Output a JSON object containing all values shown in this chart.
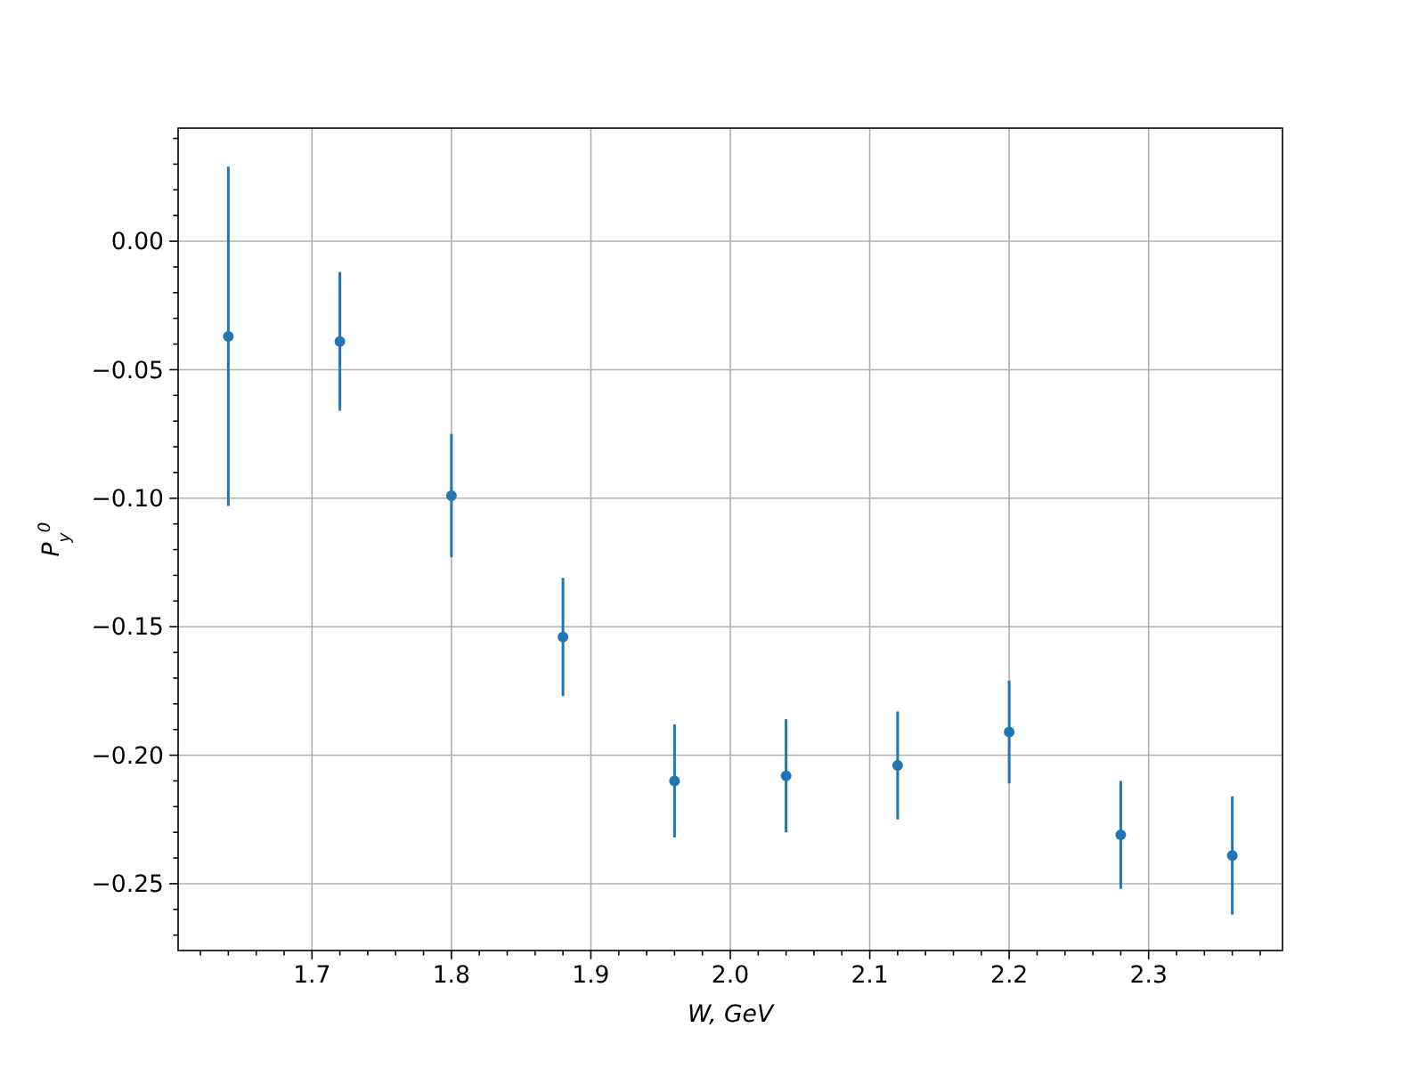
{
  "chart_data": {
    "type": "scatter",
    "xlabel": "W, GeV",
    "ylabel": "P$_{y}$$^{0}$",
    "x": [
      1.64,
      1.72,
      1.8,
      1.88,
      1.96,
      2.04,
      2.12,
      2.2,
      2.28,
      2.36
    ],
    "values": [
      -0.037,
      -0.039,
      -0.099,
      -0.154,
      -0.21,
      -0.208,
      -0.204,
      -0.191,
      -0.231,
      -0.239
    ],
    "errors": [
      0.066,
      0.027,
      0.024,
      0.023,
      0.022,
      0.022,
      0.021,
      0.02,
      0.021,
      0.023
    ],
    "color": "#1f77b4",
    "marker": "circle",
    "grid": true,
    "xlim": [
      1.604,
      2.396
    ],
    "ylim": [
      -0.276,
      0.044
    ],
    "xticks": [
      {
        "value": 1.62,
        "label": null
      },
      {
        "value": 1.64,
        "label": null
      },
      {
        "value": 1.66,
        "label": null
      },
      {
        "value": 1.68,
        "label": null
      },
      1.7,
      {
        "value": 1.72,
        "label": null
      },
      {
        "value": 1.74,
        "label": null
      },
      {
        "value": 1.76,
        "label": null
      },
      {
        "value": 1.78,
        "label": null
      },
      1.8,
      {
        "value": 1.82,
        "label": null
      },
      {
        "value": 1.84,
        "label": null
      },
      {
        "value": 1.86,
        "label": null
      },
      {
        "value": 1.88,
        "label": null
      },
      1.9,
      {
        "value": 1.92,
        "label": null
      },
      {
        "value": 1.94,
        "label": null
      },
      {
        "value": 1.96,
        "label": null
      },
      {
        "value": 1.98,
        "label": null
      },
      {
        "value": 2.0,
        "label": "2.0"
      },
      {
        "value": 2.02,
        "label": null
      },
      {
        "value": 2.04,
        "label": null
      },
      {
        "value": 2.06,
        "label": null
      },
      {
        "value": 2.08,
        "label": null
      },
      2.1,
      {
        "value": 2.12,
        "label": null
      },
      {
        "value": 2.14,
        "label": null
      },
      {
        "value": 2.16,
        "label": null
      },
      {
        "value": 2.18,
        "label": null
      },
      2.2,
      {
        "value": 2.22,
        "label": null
      },
      {
        "value": 2.24,
        "label": null
      },
      {
        "value": 2.26,
        "label": null
      },
      {
        "value": 2.28,
        "label": null
      },
      2.3,
      {
        "value": 2.32,
        "label": null
      },
      {
        "value": 2.34,
        "label": null
      },
      {
        "value": 2.36,
        "label": null
      },
      {
        "value": 2.38,
        "label": null
      }
    ],
    "yticks": [
      {
        "value": -0.27,
        "label": null
      },
      {
        "value": -0.26,
        "label": null
      },
      {
        "value": -0.25,
        "label": "−0.25"
      },
      {
        "value": -0.24,
        "label": null
      },
      {
        "value": -0.23,
        "label": null
      },
      {
        "value": -0.22,
        "label": null
      },
      {
        "value": -0.21,
        "label": null
      },
      {
        "value": -0.2,
        "label": "−0.20"
      },
      {
        "value": -0.19,
        "label": null
      },
      {
        "value": -0.18,
        "label": null
      },
      {
        "value": -0.17,
        "label": null
      },
      {
        "value": -0.16,
        "label": null
      },
      {
        "value": -0.15,
        "label": "−0.15"
      },
      {
        "value": -0.14,
        "label": null
      },
      {
        "value": -0.13,
        "label": null
      },
      {
        "value": -0.12,
        "label": null
      },
      {
        "value": -0.11,
        "label": null
      },
      {
        "value": -0.1,
        "label": "−0.10"
      },
      {
        "value": -0.09,
        "label": null
      },
      {
        "value": -0.08,
        "label": null
      },
      {
        "value": -0.07,
        "label": null
      },
      {
        "value": -0.06,
        "label": null
      },
      {
        "value": -0.05,
        "label": "−0.05"
      },
      {
        "value": -0.04,
        "label": null
      },
      {
        "value": -0.03,
        "label": null
      },
      {
        "value": -0.02,
        "label": null
      },
      {
        "value": -0.01,
        "label": null
      },
      {
        "value": 0,
        "label": "0.00"
      },
      {
        "value": 0.01,
        "label": null
      },
      {
        "value": 0.02,
        "label": null
      },
      {
        "value": 0.03,
        "label": null
      },
      {
        "value": 0.04,
        "label": null
      }
    ]
  }
}
